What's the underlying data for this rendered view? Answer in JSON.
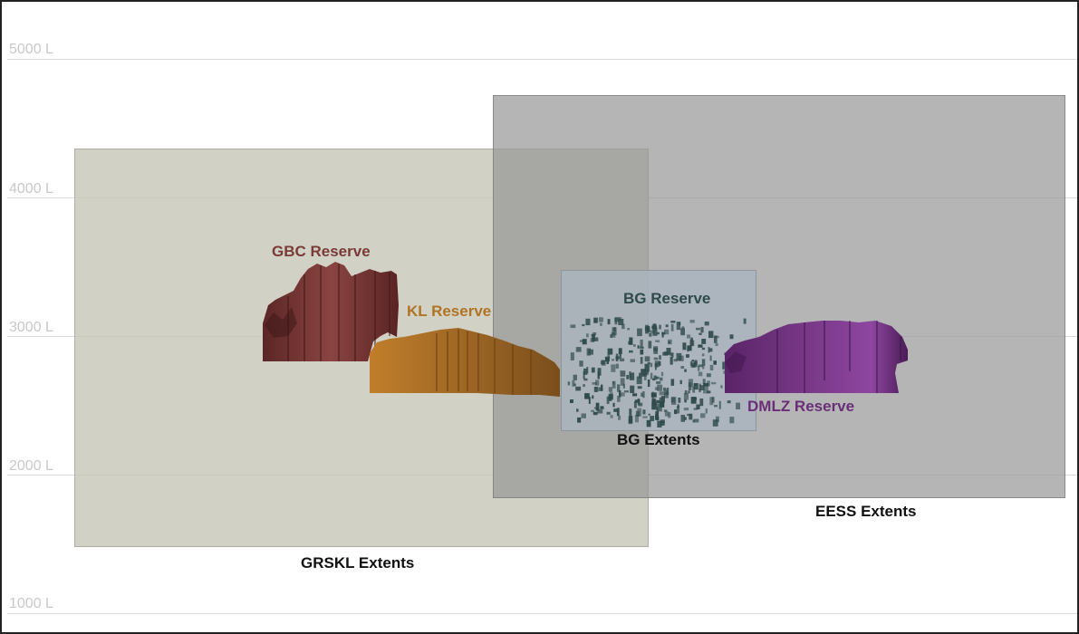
{
  "levels": [
    "5000 L",
    "4000 L",
    "3000 L",
    "2000 L",
    "1000 L"
  ],
  "extents": {
    "grskl": "GRSKL Extents",
    "eess": "EESS Extents",
    "bg": "BG Extents"
  },
  "reserves": {
    "gbc": "GBC Reserve",
    "kl": "KL Reserve",
    "bg": "BG Reserve",
    "dmlz": "DMLZ Reserve"
  },
  "colors": {
    "gbc": "#7a3a36",
    "kl": "#b07424",
    "bg": "#2f4a4a",
    "dmlz": "#6a2e78"
  }
}
